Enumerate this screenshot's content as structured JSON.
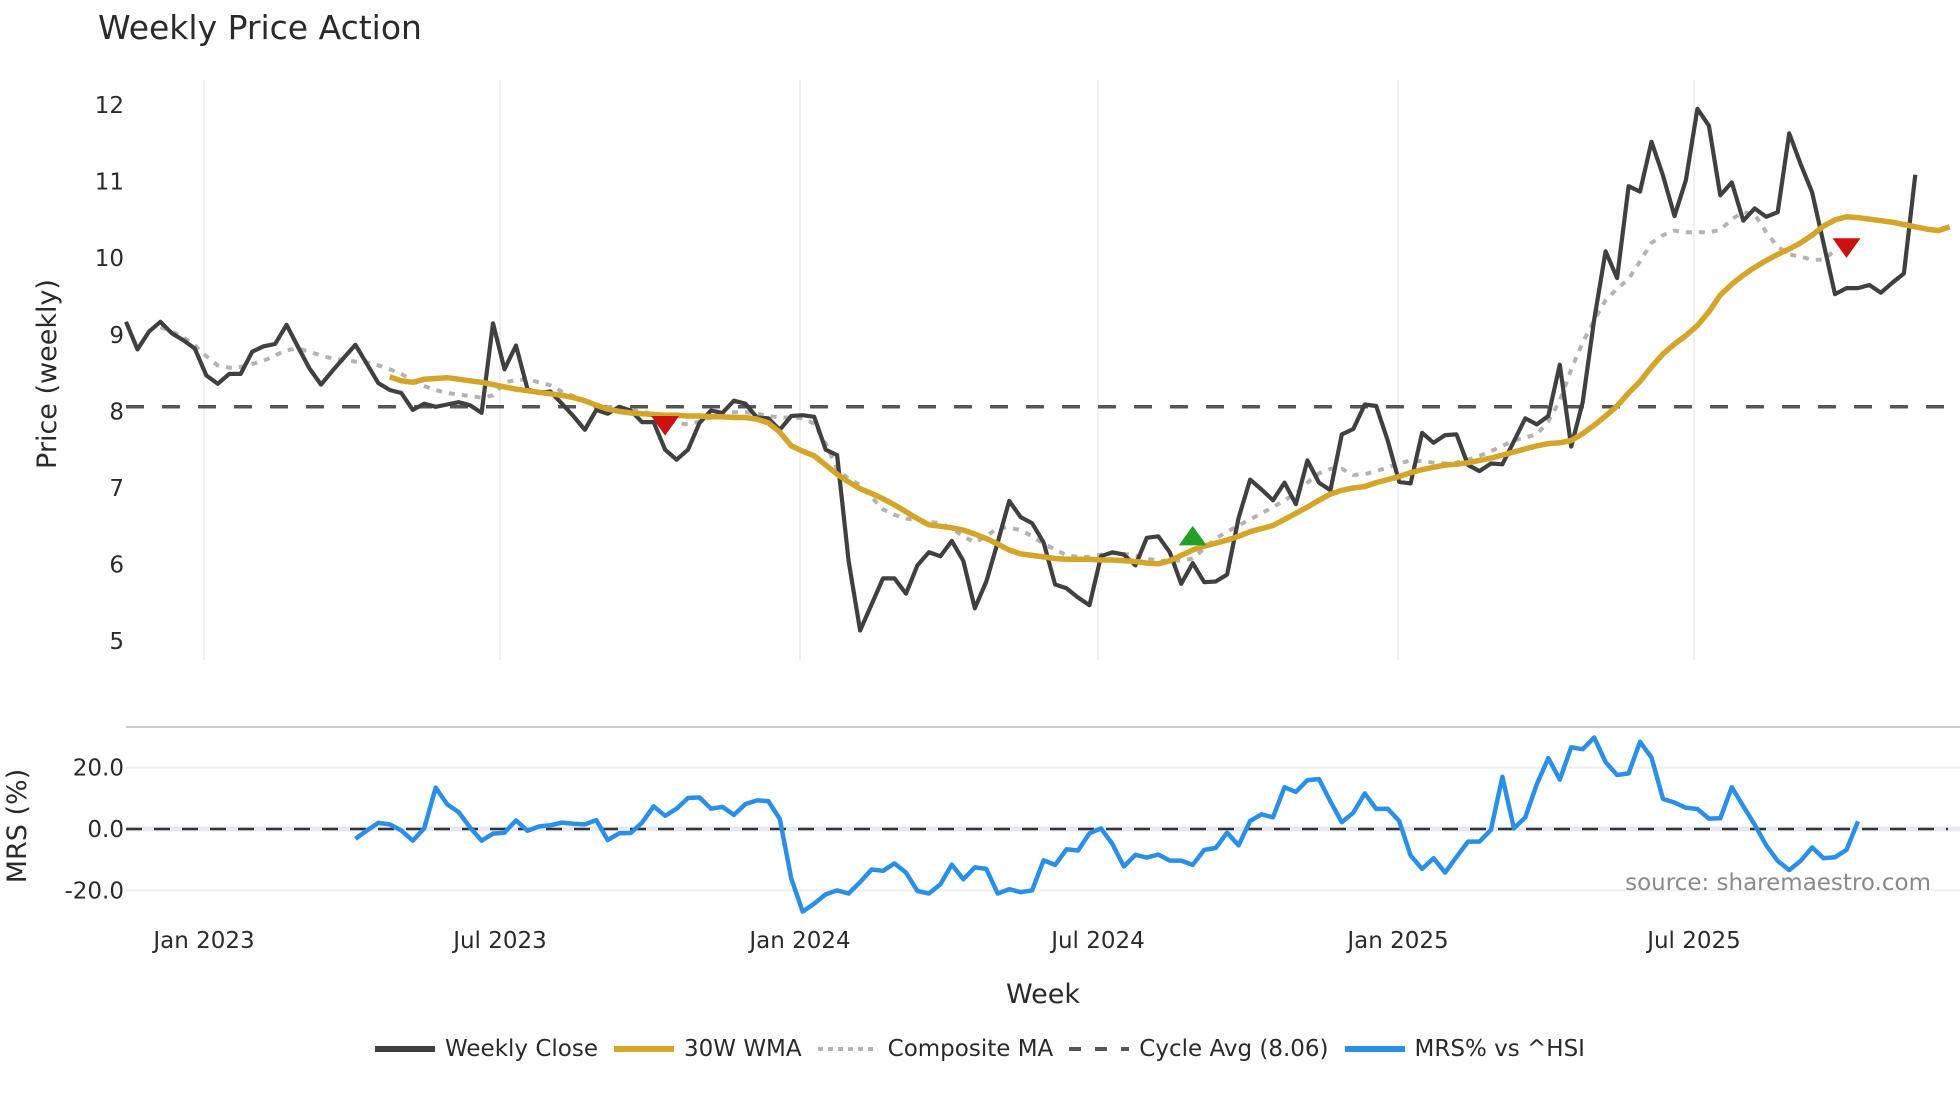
{
  "title": "Weekly Price Action",
  "chart_data": [
    {
      "type": "line",
      "title": "Weekly Price Action",
      "xlabel": "Week",
      "ylabel": "Price (weekly)",
      "ylim": [
        4.85,
        12.35
      ],
      "yticks": [
        5,
        6,
        7,
        8,
        9,
        10,
        11,
        12
      ],
      "xticks": [
        "Jan 2023",
        "Jul 2023",
        "Jan 2024",
        "Jul 2024",
        "Jan 2025",
        "Jul 2025"
      ],
      "grid": "vertical",
      "cycle_avg": 8.06,
      "series": [
        {
          "name": "Weekly Close",
          "color": "#404040",
          "x_start_week": 0,
          "values": [
            9.17,
            8.81,
            9.04,
            9.17,
            9.02,
            8.93,
            8.82,
            8.47,
            8.36,
            8.49,
            8.49,
            8.78,
            8.85,
            8.88,
            9.13,
            8.84,
            8.56,
            8.35,
            8.53,
            8.7,
            8.87,
            8.62,
            8.37,
            8.28,
            8.24,
            8.02,
            8.1,
            8.06,
            8.09,
            8.12,
            8.08,
            7.98,
            9.15,
            8.55,
            8.86,
            8.29,
            8.24,
            8.26,
            8.1,
            7.94,
            7.76,
            8.02,
            7.97,
            8.06,
            8.01,
            7.86,
            7.86,
            7.5,
            7.37,
            7.5,
            7.85,
            8.01,
            7.98,
            8.14,
            8.1,
            7.92,
            7.91,
            7.76,
            7.94,
            7.95,
            7.93,
            7.5,
            7.43,
            6.05,
            5.14,
            5.48,
            5.82,
            5.82,
            5.62,
            5.99,
            6.16,
            6.11,
            6.31,
            6.05,
            5.43,
            5.78,
            6.29,
            6.83,
            6.62,
            6.54,
            6.29,
            5.74,
            5.69,
            5.57,
            5.47,
            6.11,
            6.16,
            6.13,
            5.99,
            6.35,
            6.37,
            6.16,
            5.75,
            6.02,
            5.77,
            5.78,
            5.87,
            6.61,
            7.11,
            6.98,
            6.84,
            7.07,
            6.79,
            7.36,
            7.07,
            6.97,
            7.7,
            7.77,
            8.09,
            8.07,
            7.62,
            7.08,
            7.06,
            7.72,
            7.59,
            7.69,
            7.7,
            7.3,
            7.22,
            7.32,
            7.31,
            7.61,
            7.91,
            7.83,
            7.94,
            8.61,
            7.54,
            8.12,
            9.2,
            10.09,
            9.74,
            10.94,
            10.87,
            11.52,
            11.08,
            10.55,
            11.02,
            11.95,
            11.73,
            10.82,
            10.99,
            10.49,
            10.65,
            10.54,
            10.6,
            11.63,
            11.23,
            10.86,
            10.19,
            9.53,
            9.61,
            9.61,
            9.65,
            9.55,
            9.68,
            9.8,
            11.09
          ]
        },
        {
          "name": "30W WMA",
          "color": "#d4a52a",
          "x_start_week": 23,
          "values": [
            8.45,
            8.4,
            8.38,
            8.42,
            8.43,
            8.44,
            8.42,
            8.4,
            8.38,
            8.35,
            8.32,
            8.29,
            8.27,
            8.25,
            8.23,
            8.21,
            8.18,
            8.14,
            8.08,
            8.03,
            8.0,
            7.98,
            7.97,
            7.96,
            7.95,
            7.95,
            7.94,
            7.94,
            7.93,
            7.93,
            7.92,
            7.92,
            7.9,
            7.85,
            7.73,
            7.55,
            7.48,
            7.42,
            7.3,
            7.18,
            7.08,
            6.99,
            6.93,
            6.86,
            6.78,
            6.69,
            6.6,
            6.52,
            6.5,
            6.48,
            6.45,
            6.4,
            6.34,
            6.27,
            6.19,
            6.14,
            6.12,
            6.1,
            6.08,
            6.07,
            6.07,
            6.07,
            6.06,
            6.06,
            6.05,
            6.04,
            6.02,
            6.01,
            6.05,
            6.12,
            6.19,
            6.24,
            6.28,
            6.32,
            6.37,
            6.43,
            6.47,
            6.51,
            6.59,
            6.67,
            6.75,
            6.84,
            6.92,
            6.97,
            7.0,
            7.02,
            7.07,
            7.11,
            7.15,
            7.2,
            7.24,
            7.27,
            7.3,
            7.31,
            7.33,
            7.36,
            7.39,
            7.43,
            7.47,
            7.51,
            7.55,
            7.58,
            7.59,
            7.62,
            7.71,
            7.82,
            7.94,
            8.07,
            8.24,
            8.39,
            8.58,
            8.75,
            8.88,
            8.99,
            9.12,
            9.3,
            9.52,
            9.66,
            9.78,
            9.88,
            9.97,
            10.05,
            10.12,
            10.2,
            10.3,
            10.42,
            10.5,
            10.54,
            10.53,
            10.51,
            10.49,
            10.47,
            10.44,
            10.41,
            10.38,
            10.36,
            10.41
          ]
        },
        {
          "name": "Composite MA",
          "color": "#b3b3b3",
          "x_start_week": 3,
          "values": [
            9.1,
            9.04,
            8.97,
            8.86,
            8.72,
            8.6,
            8.57,
            8.58,
            8.62,
            8.66,
            8.73,
            8.8,
            8.82,
            8.78,
            8.73,
            8.69,
            8.67,
            8.65,
            8.64,
            8.6,
            8.55,
            8.49,
            8.4,
            8.33,
            8.28,
            8.24,
            8.22,
            8.2,
            8.18,
            8.21,
            8.38,
            8.41,
            8.42,
            8.38,
            8.34,
            8.26,
            8.2,
            8.13,
            8.09,
            8.06,
            8.04,
            8.02,
            8.0,
            7.96,
            7.88,
            7.85,
            7.83,
            7.87,
            7.92,
            7.97,
            7.99,
            7.99,
            7.97,
            7.94,
            7.92,
            7.92,
            7.91,
            7.84,
            7.58,
            7.25,
            7.12,
            7.04,
            6.88,
            6.72,
            6.65,
            6.6,
            6.58,
            6.56,
            6.54,
            6.47,
            6.37,
            6.29,
            6.37,
            6.48,
            6.48,
            6.45,
            6.37,
            6.27,
            6.2,
            6.12,
            6.1,
            6.1,
            6.13,
            6.15,
            6.14,
            6.12,
            6.08,
            6.05,
            6.05,
            6.05,
            6.08,
            6.21,
            6.34,
            6.43,
            6.51,
            6.59,
            6.67,
            6.75,
            6.84,
            6.93,
            7.07,
            7.19,
            7.25,
            7.25,
            7.17,
            7.18,
            7.22,
            7.27,
            7.32,
            7.36,
            7.35,
            7.33,
            7.32,
            7.33,
            7.37,
            7.42,
            7.48,
            7.55,
            7.62,
            7.66,
            7.7,
            7.87,
            8.14,
            8.55,
            8.9,
            9.19,
            9.45,
            9.6,
            9.73,
            9.96,
            10.2,
            10.3,
            10.36,
            10.34,
            10.34,
            10.34,
            10.37,
            10.51,
            10.6,
            10.57,
            10.34,
            10.15,
            10.05,
            10.02,
            9.98,
            9.98,
            10.1
          ]
        },
        {
          "name": "Cycle Avg (8.06)",
          "color": "#555555",
          "value": 8.06
        }
      ],
      "markers": [
        {
          "type": "sell",
          "shape": "triangle-down",
          "color": "#cc1111",
          "week": 47,
          "price": 7.83
        },
        {
          "type": "buy",
          "shape": "triangle-up",
          "color": "#22a02a",
          "week": 93,
          "price": 6.36
        },
        {
          "type": "sell",
          "shape": "triangle-down",
          "color": "#cc1111",
          "week": 150,
          "price": 10.15
        }
      ]
    },
    {
      "type": "line",
      "title": "",
      "xlabel": "Week",
      "ylabel": "MRS (%)",
      "ylim": [
        -29,
        33
      ],
      "yticks": [
        -20.0,
        0.0,
        20.0
      ],
      "ytick_labels": [
        "-20.0",
        "0.0",
        "20.0"
      ],
      "reference_line": 0.0,
      "series": [
        {
          "name": "MRS% vs ^HSI",
          "color": "#2b8fe8",
          "x_start_week": 20,
          "values": [
            -3.2,
            -0.5,
            2.0,
            1.5,
            -0.5,
            -3.8,
            0.2,
            13.5,
            8.0,
            5.5,
            0.5,
            -3.8,
            -1.5,
            -1.2,
            2.8,
            -0.6,
            0.8,
            1.2,
            2.1,
            1.7,
            1.5,
            2.9,
            -3.6,
            -1.4,
            -1.3,
            2.1,
            7.4,
            4.3,
            6.6,
            10.1,
            10.3,
            6.6,
            7.2,
            4.6,
            8.1,
            9.3,
            9.1,
            3.3,
            -16.2,
            -26.9,
            -24.3,
            -21.3,
            -20.0,
            -21.0,
            -17.3,
            -13.2,
            -13.6,
            -11.2,
            -14.2,
            -20.2,
            -21.0,
            -18.0,
            -11.6,
            -16.4,
            -12.5,
            -13.0,
            -21.0,
            -19.6,
            -20.6,
            -20.0,
            -10.2,
            -11.7,
            -6.6,
            -7.0,
            -1.4,
            0.2,
            -4.9,
            -12.2,
            -8.4,
            -9.3,
            -8.3,
            -10.3,
            -10.3,
            -11.7,
            -6.8,
            -6.2,
            -1.2,
            -5.3,
            2.6,
            4.8,
            3.8,
            13.6,
            12.1,
            15.9,
            16.3,
            9.0,
            2.2,
            5.3,
            11.6,
            6.5,
            6.6,
            2.6,
            -8.6,
            -13.0,
            -9.5,
            -14.2,
            -9.1,
            -4.1,
            -4.1,
            -0.3,
            17.0,
            0.2,
            3.8,
            14.6,
            23.1,
            16.1,
            26.6,
            26.0,
            29.8,
            21.8,
            17.6,
            18.1,
            28.4,
            23.3,
            9.8,
            8.6,
            6.9,
            6.5,
            3.4,
            3.5,
            13.6,
            7.4,
            1.4,
            -5.3,
            -10.4,
            -13.4,
            -10.4,
            -6.0,
            -9.5,
            -9.2,
            -6.8,
            2.5
          ]
        }
      ]
    }
  ],
  "axes": {
    "price": {
      "ylabel": "Price (weekly)",
      "ticks": [
        "12",
        "11",
        "10",
        "9",
        "8",
        "7",
        "6",
        "5"
      ]
    },
    "mrs": {
      "ylabel": "MRS (%)",
      "ticks": [
        "20.0",
        "0.0",
        "-20.0"
      ]
    },
    "x": {
      "label": "Week",
      "ticks": [
        "Jan 2023",
        "Jul 2023",
        "Jan 2024",
        "Jul 2024",
        "Jan 2025",
        "Jul 2025"
      ]
    }
  },
  "source_text": "source: sharemaestro.com",
  "legend": [
    {
      "label": "Weekly Close",
      "style": "solid",
      "color": "#404040"
    },
    {
      "label": "30W WMA",
      "style": "solid",
      "color": "#d4a52a"
    },
    {
      "label": "Composite MA",
      "style": "dotted",
      "color": "#b3b3b3"
    },
    {
      "label": "Cycle Avg (8.06)",
      "style": "dashed",
      "color": "#555555"
    },
    {
      "label": "MRS% vs ^HSI",
      "style": "solid",
      "color": "#2b8fe8"
    }
  ]
}
